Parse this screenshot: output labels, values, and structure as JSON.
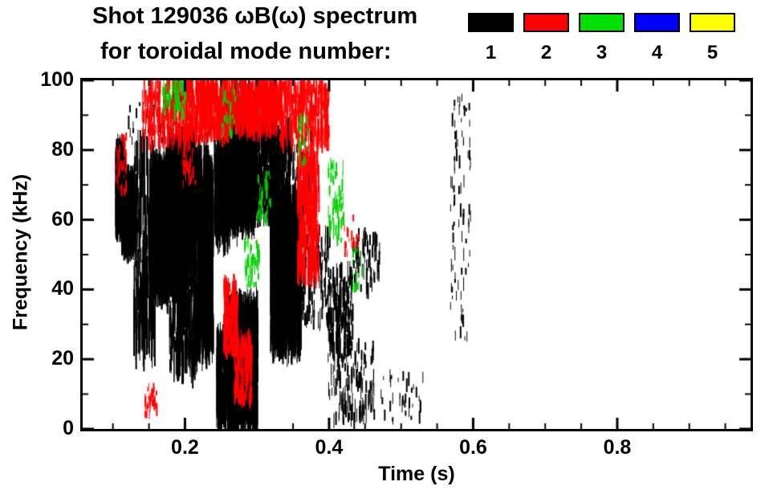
{
  "title": {
    "line1": "Shot 129036 ωB(ω) spectrum",
    "line2": "for toroidal mode number:"
  },
  "legend": {
    "modes": [
      {
        "label": "1",
        "color": "#000000"
      },
      {
        "label": "2",
        "color": "#ff0000"
      },
      {
        "label": "3",
        "color": "#00e000"
      },
      {
        "label": "4",
        "color": "#0000ff"
      },
      {
        "label": "5",
        "color": "#ffff00"
      }
    ]
  },
  "chart_data": {
    "type": "heatmap",
    "title": "Shot 129036 ωB(ω) spectrum for toroidal mode number: 1-5",
    "xlabel": "Time (s)",
    "ylabel": "Frequency (kHz)",
    "xlim": [
      0.058,
      0.985
    ],
    "ylim": [
      0,
      100
    ],
    "xticks": [
      0.2,
      0.4,
      0.6,
      0.8
    ],
    "yticks": [
      0,
      20,
      40,
      60,
      80,
      100
    ],
    "x_minor_step": 0.05,
    "y_minor_step": 10,
    "grid": false,
    "legend_position": "top-right",
    "plot_bg": "#ffffff",
    "cluster_format": [
      "t_start_s",
      "t_end_s",
      "f_min_kHz",
      "f_max_kHz",
      "point_count",
      "stroke_min_kHz",
      "stroke_max_kHz"
    ],
    "series": [
      {
        "name": "n=1",
        "color": "#000000",
        "clusters": [
          [
            0.103,
            0.116,
            58,
            80,
            500,
            3,
            10
          ],
          [
            0.111,
            0.129,
            52,
            72,
            450,
            3,
            10
          ],
          [
            0.128,
            0.158,
            24,
            80,
            220,
            4,
            18
          ],
          [
            0.15,
            0.178,
            38,
            76,
            550,
            3,
            12
          ],
          [
            0.175,
            0.212,
            44,
            82,
            1100,
            3,
            12
          ],
          [
            0.178,
            0.215,
            18,
            46,
            220,
            3,
            14
          ],
          [
            0.213,
            0.238,
            24,
            76,
            450,
            5,
            20
          ],
          [
            0.24,
            0.262,
            55,
            80,
            320,
            3,
            12
          ],
          [
            0.258,
            0.296,
            58,
            92,
            650,
            3,
            12
          ],
          [
            0.296,
            0.325,
            62,
            88,
            300,
            3,
            10
          ],
          [
            0.243,
            0.266,
            2,
            26,
            450,
            2,
            10
          ],
          [
            0.258,
            0.3,
            2,
            36,
            850,
            3,
            12
          ],
          [
            0.318,
            0.36,
            24,
            66,
            1300,
            4,
            14
          ],
          [
            0.322,
            0.345,
            66,
            86,
            180,
            2,
            8
          ],
          [
            0.36,
            0.4,
            28,
            58,
            110,
            2,
            6
          ],
          [
            0.398,
            0.432,
            22,
            46,
            180,
            2,
            6
          ],
          [
            0.398,
            0.462,
            2,
            24,
            140,
            2,
            5
          ],
          [
            0.432,
            0.47,
            38,
            56,
            70,
            2,
            5
          ],
          [
            0.47,
            0.53,
            2,
            16,
            35,
            1,
            4
          ],
          [
            0.568,
            0.596,
            25,
            96,
            85,
            1,
            4
          ],
          [
            0.12,
            0.25,
            82,
            96,
            60,
            1,
            4
          ],
          [
            0.25,
            0.33,
            80,
            100,
            140,
            2,
            6
          ],
          [
            0.34,
            0.375,
            60,
            85,
            80,
            2,
            6
          ]
        ]
      },
      {
        "name": "n=2",
        "color": "#ff0000",
        "clusters": [
          [
            0.14,
            0.2,
            82,
            100,
            230,
            2,
            8
          ],
          [
            0.2,
            0.26,
            84,
            100,
            420,
            2,
            8
          ],
          [
            0.26,
            0.33,
            86,
            100,
            480,
            2,
            8
          ],
          [
            0.33,
            0.4,
            82,
            100,
            330,
            2,
            8
          ],
          [
            0.253,
            0.272,
            22,
            42,
            170,
            2,
            6
          ],
          [
            0.268,
            0.292,
            8,
            26,
            170,
            2,
            6
          ],
          [
            0.355,
            0.385,
            44,
            78,
            280,
            3,
            10
          ],
          [
            0.143,
            0.16,
            4,
            12,
            45,
            1,
            3
          ],
          [
            0.103,
            0.118,
            68,
            84,
            35,
            1,
            4
          ],
          [
            0.418,
            0.44,
            50,
            62,
            20,
            1,
            3
          ],
          [
            0.195,
            0.215,
            70,
            84,
            40,
            1,
            4
          ]
        ]
      },
      {
        "name": "n=3",
        "color": "#00d000",
        "clusters": [
          [
            0.168,
            0.2,
            90,
            100,
            70,
            1,
            4
          ],
          [
            0.282,
            0.302,
            40,
            54,
            55,
            1,
            4
          ],
          [
            0.3,
            0.318,
            60,
            74,
            40,
            1,
            4
          ],
          [
            0.398,
            0.42,
            54,
            76,
            65,
            1,
            4
          ],
          [
            0.356,
            0.372,
            76,
            90,
            28,
            1,
            3
          ],
          [
            0.25,
            0.27,
            84,
            98,
            35,
            1,
            3
          ],
          [
            0.43,
            0.445,
            40,
            52,
            18,
            1,
            3
          ]
        ]
      },
      {
        "name": "n=4",
        "color": "#0000ff",
        "clusters": []
      },
      {
        "name": "n=5",
        "color": "#ffff00",
        "clusters": []
      }
    ]
  }
}
